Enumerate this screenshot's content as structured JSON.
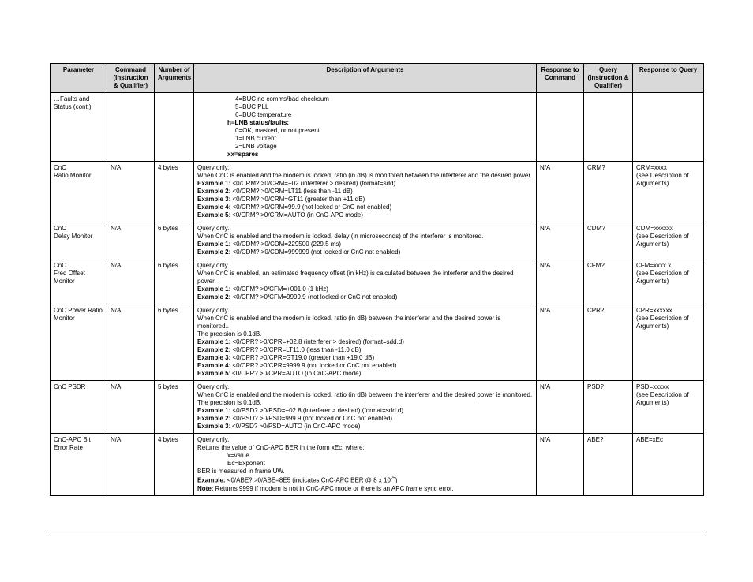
{
  "columns": {
    "param": "Parameter",
    "cmd": "Command\n(Instruction & Qualifier)",
    "num": "Number of Arguments",
    "desc": "Description of Arguments",
    "resp": "Response to Command",
    "query": "Query\n(Instruction & Qualifier)",
    "rq": "Response to Query"
  },
  "rows": {
    "r1": {
      "param": "…Faults and Status (cont.)",
      "cmd": "",
      "num": "",
      "desc_l": [
        "4=BUC no comms/bad checksum",
        "5=BUC PLL",
        "6=BUC temperature"
      ],
      "desc_h": "h=LNB status/faults:",
      "desc_l2": [
        "0=OK, masked, or not present",
        "1=LNB current",
        "2=LNB voltage"
      ],
      "desc_xx": "xx=spares",
      "resp": "",
      "query": "",
      "rq": ""
    },
    "r2": {
      "param": "CnC\nRatio Monitor",
      "cmd": "N/A",
      "num": "4 bytes",
      "d1": "Query only.",
      "d2": "When CnC is enabled and the modem is locked, ratio (in dB) is monitored between the interferer and the desired power.",
      "e1b": "Example 1:",
      "e1": " <0/CRM?   >0/CRM=+02 (interferer > desired) (format=sdd)",
      "e2b": "Example 2:",
      "e2": " <0/CRM?   >0/CRM=LT11 (less than -11 dB)",
      "e3b": "Example 3:",
      "e3": " <0/CRM?   >0/CRM=GT11 (greater than +11 dB)",
      "e4b": "Example 4:",
      "e4": " <0/CRM?   >0/CRM=99.9 (not locked or CnC not enabled)",
      "e5b": "Example 5",
      "e5": ": <0/CRM?   >0/CRM=AUTO (in CnC-APC mode)",
      "resp": "N/A",
      "query": "CRM?",
      "rq": "CRM=xxxx\n(see Description of Arguments)"
    },
    "r3": {
      "param": "CnC\nDelay Monitor",
      "cmd": "N/A",
      "num": "6 bytes",
      "d1": "Query only.",
      "d2": "When CnC is enabled and the modem is locked, delay (in microseconds) of the interferer is monitored.",
      "e1b": "Example 1:",
      "e1": " <0/CDM?   >0/CDM=229500 (229.5 ms)",
      "e2b": "Example 2:",
      "e2": " <0/CDM?   >0/CDM=999999 (not locked or CnC not enabled)",
      "resp": "N/A",
      "query": "CDM?",
      "rq": "CDM=xxxxxx\n(see Description of Arguments)"
    },
    "r4": {
      "param": "CnC\nFreq Offset Monitor",
      "cmd": "N/A",
      "num": "6 bytes",
      "d1": "Query only.",
      "d2": "When CnC is enabled, an estimated frequency offset (in kHz) is calculated between the interferer and the desired power.",
      "e1b": "Example 1:",
      "e1": " <0/CFM?   >0/CFM=+001.0 (1 kHz)",
      "e2b": "Example 2:",
      "e2": " <0/CFM?   >0/CFM=9999.9 (not locked or CnC not enabled)",
      "resp": "N/A",
      "query": "CFM?",
      "rq": "CFM=xxxx.x\n(see Description of Arguments)"
    },
    "r5": {
      "param": "CnC Power Ratio Monitor",
      "cmd": "N/A",
      "num": "6 bytes",
      "d1": "Query only.",
      "d2": "When CnC is enabled and the modem is locked, ratio (in dB) between the interferer and the desired power is monitored..",
      "d3": "The precision is 0.1dB.",
      "e1b": "Example 1:",
      "e1": " <0/CPR?   >0/CPR=+02.8 (interferer > desired) (format=sdd.d)",
      "e2b": "Example 2:",
      "e2": " <0/CPR?   >0/CPR=LT11.0 (less than -11.0 dB)",
      "e3b": "Example 3:",
      "e3": " <0/CPR?   >0/CPR=GT19.0 (greater than +19.0 dB)",
      "e4b": "Example 4:",
      "e4": " <0/CPR?   >0/CPR=9999.9 (not locked or CnC not enabled)",
      "e5b": "Example 5",
      "e5": ": <0/CPR?   >0/CPR=AUTO (in CnC-APC mode)",
      "resp": "N/A",
      "query": "CPR?",
      "rq": "CPR=xxxxxx\n(see Description of Arguments)"
    },
    "r6": {
      "param": "CnC PSDR",
      "cmd": "N/A",
      "num": "5 bytes",
      "d1": "Query only.",
      "d2": "When CnC is enabled and the modem is locked, ratio (in dB) between the interferer and the desired power is monitored.",
      "d3": "The precision is 0.1dB.",
      "e1b": "Example 1:",
      "e1": " <0/PSD?   >0/PSD=+02.8 (interferer > desired) (format=sdd.d)",
      "e2b": "Example 2:",
      "e2": " <0/PSD?   >0/PSD=999.9 (not locked or CnC not enabled)",
      "e3b": "Example 3",
      "e3": ": <0/PSD?   >0/PSD=AUTO  (in CnC-APC mode)",
      "resp": "N/A",
      "query": "PSD?",
      "rq": "PSD=xxxxx\n(see Description of Arguments)"
    },
    "r7": {
      "param": "CnC-APC Bit Error Rate",
      "cmd": "N/A",
      "num": "4 bytes",
      "d1": "Query only.",
      "d2": "Returns the value of CnC-APC BER in the form xEc, where:",
      "l1": "x=value",
      "l2": "Ec=Exponent",
      "d3": "BER is measured in frame UW.",
      "e1b": "Example:",
      "e1": " <0/ABE?   >0/ABE=8E5  (indicates CnC-APC BER @ 8 x 10",
      "sup": "-5",
      "e1tail": ")",
      "nb": "Note:",
      "nt": " Returns 9999 if modem is not in CnC-APC mode or there is an APC frame sync error.",
      "resp": "N/A",
      "query": "ABE?",
      "rq": "ABE=xEc"
    }
  }
}
